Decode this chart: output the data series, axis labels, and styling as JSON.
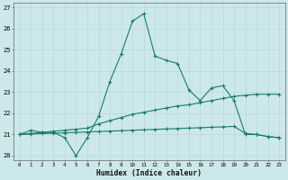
{
  "xlabel": "Humidex (Indice chaleur)",
  "x": [
    0,
    1,
    2,
    3,
    4,
    5,
    6,
    7,
    8,
    9,
    10,
    11,
    12,
    13,
    14,
    15,
    16,
    17,
    18,
    19,
    20,
    21,
    22,
    23
  ],
  "line1": [
    21.0,
    21.2,
    21.1,
    21.1,
    20.85,
    20.0,
    20.85,
    21.85,
    23.5,
    24.8,
    26.35,
    26.7,
    24.7,
    24.5,
    24.35,
    23.1,
    22.6,
    23.2,
    23.3,
    22.6,
    21.0,
    21.0,
    20.9,
    20.85
  ],
  "line2": [
    21.0,
    21.05,
    21.1,
    21.15,
    21.2,
    21.25,
    21.3,
    21.5,
    21.65,
    21.8,
    21.95,
    22.05,
    22.15,
    22.25,
    22.35,
    22.4,
    22.5,
    22.6,
    22.7,
    22.8,
    22.85,
    22.9,
    22.9,
    22.9
  ],
  "line3": [
    21.0,
    21.02,
    21.04,
    21.06,
    21.08,
    21.1,
    21.12,
    21.14,
    21.16,
    21.18,
    21.2,
    21.22,
    21.24,
    21.26,
    21.28,
    21.3,
    21.32,
    21.34,
    21.36,
    21.38,
    21.05,
    21.0,
    20.9,
    20.85
  ],
  "line_color": "#1a7a6e",
  "bg_color": "#cce8ea",
  "grid_color": "#b8d8da",
  "ylim": [
    19.8,
    27.2
  ],
  "xlim": [
    -0.5,
    23.5
  ],
  "yticks": [
    20,
    21,
    22,
    23,
    24,
    25,
    26,
    27
  ],
  "xticks": [
    0,
    1,
    2,
    3,
    4,
    5,
    6,
    7,
    8,
    9,
    10,
    11,
    12,
    13,
    14,
    15,
    16,
    17,
    18,
    19,
    20,
    21,
    22,
    23
  ]
}
